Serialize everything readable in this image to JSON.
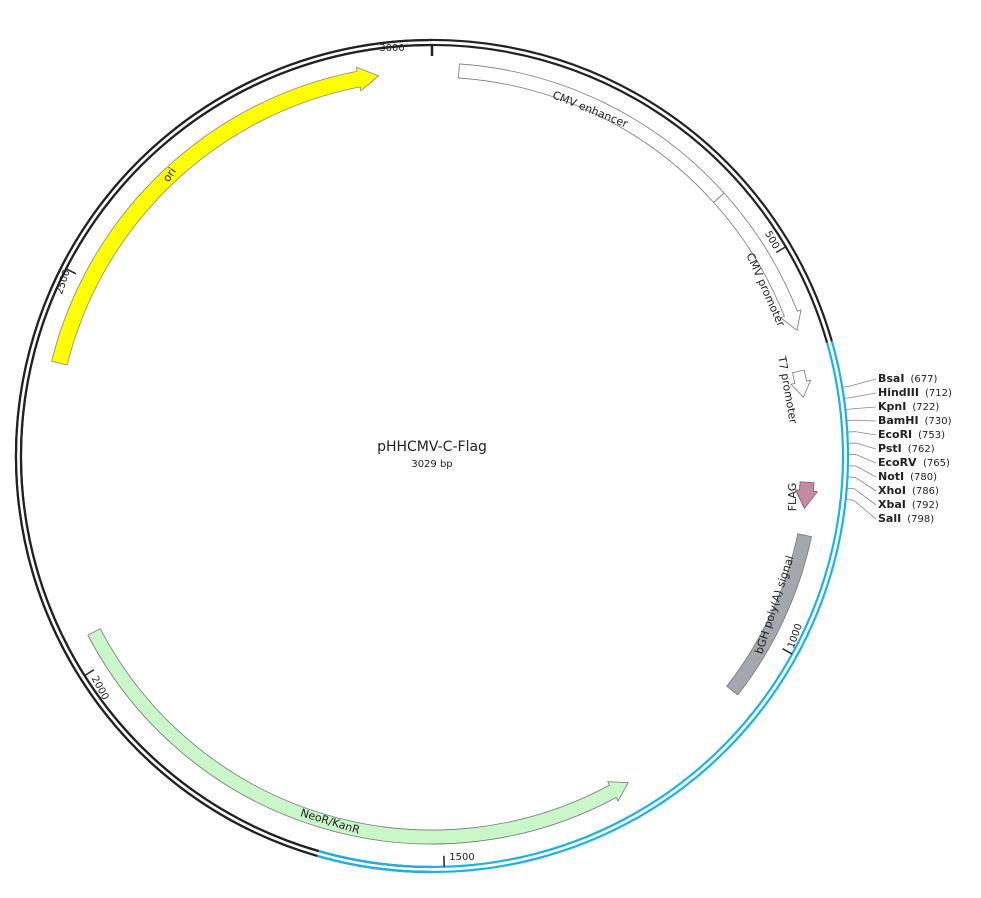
{
  "title": "pHHCMV-C-Flag",
  "length": "3029 bp",
  "features": [
    {
      "label": "CMV enhancer"
    },
    {
      "label": "CMV promoter"
    },
    {
      "label": "T7 promoter"
    },
    {
      "label": "FLAG"
    },
    {
      "label": "bGH poly(A) signal"
    },
    {
      "label": "NeoR/KanR"
    },
    {
      "label": "ori"
    }
  ],
  "ticks": [
    "3000",
    "500",
    "1000",
    "1500",
    "2000",
    "2500"
  ],
  "sites": [
    {
      "name": "BsaI",
      "position": "(677)"
    },
    {
      "name": "HindIII",
      "position": "(712)"
    },
    {
      "name": "KpnI",
      "position": "(722)"
    },
    {
      "name": "BamHI",
      "position": "(730)"
    },
    {
      "name": "EcoRI",
      "position": "(753)"
    },
    {
      "name": "PstI",
      "position": "(762)"
    },
    {
      "name": "EcoRV",
      "position": "(765)"
    },
    {
      "name": "NotI",
      "position": "(780)"
    },
    {
      "name": "XhoI",
      "position": "(786)"
    },
    {
      "name": "XbaI",
      "position": "(792)"
    },
    {
      "name": "SalI",
      "position": "(798)"
    }
  ]
}
